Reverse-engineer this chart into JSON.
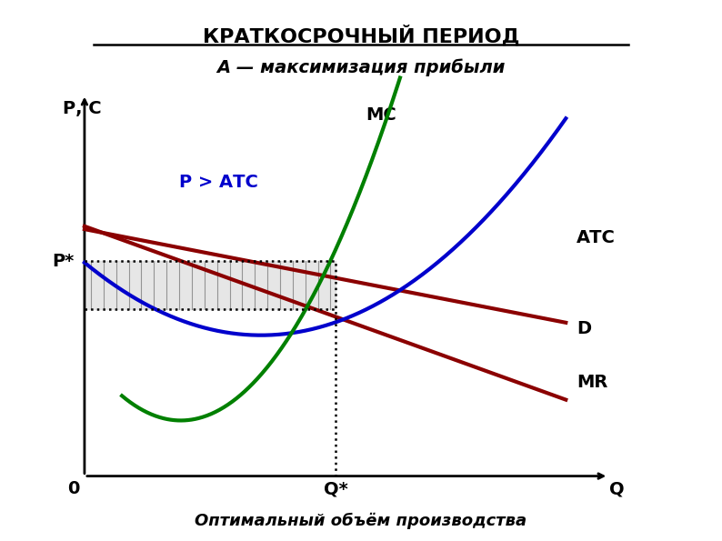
{
  "title_line1": "КРАТКОСРОЧНЫЙ ПЕРИОД",
  "title_line2": "А — максимизация прибыли",
  "ylabel": "Р, С",
  "xlabel_q": "Q",
  "xlabel_qstar": "Q*",
  "label_0": "0",
  "label_pstar": "P*",
  "label_mc": "МС",
  "label_atc": "АТС",
  "label_d": "D",
  "label_mr": "MR",
  "label_patc": "P > АТС",
  "label_bottom": "Оптимальный объём производства",
  "bg_color": "#ffffff",
  "color_mc": "#008000",
  "color_atc": "#0000cc",
  "color_d": "#8B0000",
  "color_mr": "#8B0000",
  "color_patc_label": "#0000cc",
  "qstar": 5.2,
  "pstar": 5.8,
  "atc_at_qstar": 4.5,
  "xmin": 0,
  "xmax": 10,
  "ymin": 0,
  "ymax": 10
}
